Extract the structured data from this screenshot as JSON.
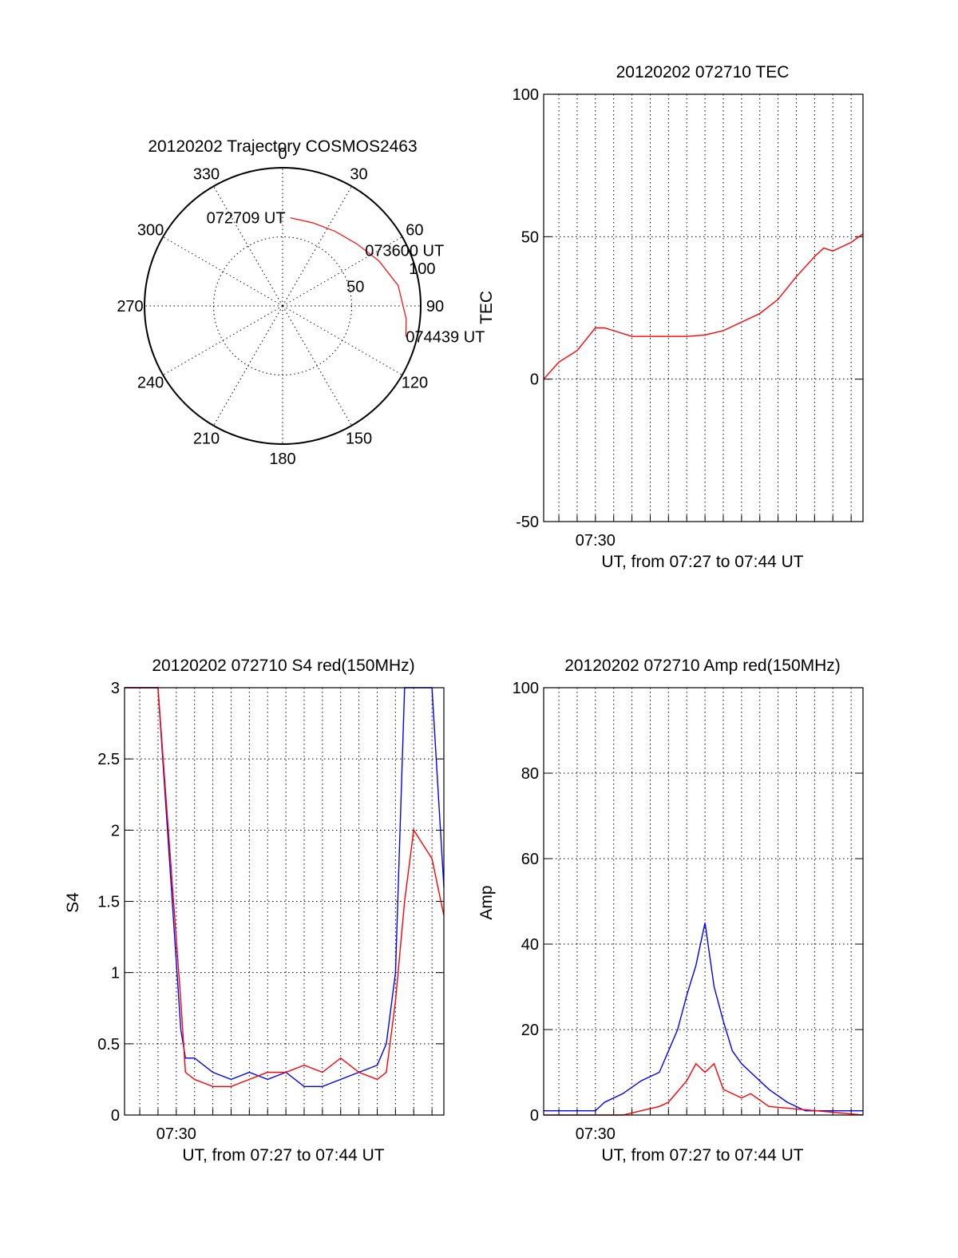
{
  "chart_data": [
    {
      "type": "polar",
      "title": "20120202 Trajectory COSMOS2463",
      "azimuth_labels": [
        "0",
        "30",
        "60",
        "90",
        "120",
        "150",
        "180",
        "210",
        "240",
        "270",
        "300",
        "330"
      ],
      "radius_labels": [
        "50",
        "100"
      ],
      "zenith_range": [
        0,
        100
      ],
      "series": [
        {
          "color": "#ff0000",
          "points": [
            {
              "az": 5,
              "zen": 64
            },
            {
              "az": 20,
              "zen": 64
            },
            {
              "az": 35,
              "zen": 66
            },
            {
              "az": 50,
              "zen": 70
            },
            {
              "az": 65,
              "zen": 77
            },
            {
              "az": 80,
              "zen": 85
            },
            {
              "az": 96,
              "zen": 90
            },
            {
              "az": 104,
              "zen": 92
            }
          ]
        }
      ],
      "annotations": [
        {
          "text": "072709 UT",
          "az": 5,
          "zen": 64
        },
        {
          "text": "073600 UT",
          "az": 56,
          "zen": 72
        },
        {
          "text": "074439 UT",
          "az": 104,
          "zen": 92
        }
      ]
    },
    {
      "type": "line",
      "title": "20120202 072710 TEC",
      "xlabel": "UT, from 07:27 to 07:44 UT",
      "ylabel": "TEC",
      "xlim": [
        "07:27:10",
        "07:44:39"
      ],
      "x_ticks": [
        {
          "label": "07:30",
          "value": "07:30:00"
        }
      ],
      "ylim": [
        -50,
        100
      ],
      "y_ticks": [
        -50,
        0,
        50,
        100
      ],
      "grid": true,
      "series": [
        {
          "color": "#ff0000",
          "x": [
            "07:27:10",
            "07:28:00",
            "07:29:00",
            "07:29:30",
            "07:30:00",
            "07:30:30",
            "07:31:00",
            "07:32:00",
            "07:33:00",
            "07:34:00",
            "07:35:00",
            "07:36:00",
            "07:37:00",
            "07:38:00",
            "07:39:00",
            "07:40:00",
            "07:41:00",
            "07:42:00",
            "07:42:30",
            "07:43:00",
            "07:44:00",
            "07:44:39"
          ],
          "values": [
            0,
            6,
            10,
            14,
            18,
            18,
            17,
            15,
            15,
            15,
            15,
            15.5,
            17,
            20,
            23,
            28,
            36,
            43,
            46,
            45,
            48,
            51
          ]
        }
      ]
    },
    {
      "type": "line",
      "title": "20120202 072710 S4 red(150MHz)",
      "xlabel": "UT, from 07:27 to 07:44 UT",
      "ylabel": "S4",
      "xlim": [
        "07:27:10",
        "07:44:39"
      ],
      "x_ticks": [
        {
          "label": "07:30",
          "value": "07:30:00"
        }
      ],
      "ylim": [
        0,
        3
      ],
      "y_ticks": [
        "0",
        "0.5",
        "1",
        "1.5",
        "2",
        "2.5",
        "3"
      ],
      "grid": true,
      "series": [
        {
          "color": "#0000ff",
          "x": [
            "07:27:10",
            "07:29:00",
            "07:30:15",
            "07:30:30",
            "07:31:00",
            "07:32:00",
            "07:33:00",
            "07:34:00",
            "07:35:00",
            "07:36:00",
            "07:37:00",
            "07:38:00",
            "07:39:00",
            "07:40:00",
            "07:41:00",
            "07:41:30",
            "07:42:00",
            "07:42:30",
            "07:43:00",
            "07:44:00",
            "07:44:39"
          ],
          "values": [
            3.0,
            3.0,
            0.6,
            0.4,
            0.4,
            0.3,
            0.25,
            0.3,
            0.25,
            0.3,
            0.2,
            0.2,
            0.25,
            0.3,
            0.35,
            0.5,
            1.0,
            3.0,
            3.0,
            3.0,
            1.6
          ]
        },
        {
          "color": "#ff0000",
          "x": [
            "07:27:10",
            "07:29:00",
            "07:30:15",
            "07:30:30",
            "07:31:00",
            "07:32:00",
            "07:33:00",
            "07:34:00",
            "07:35:00",
            "07:36:00",
            "07:37:00",
            "07:38:00",
            "07:39:00",
            "07:40:00",
            "07:41:00",
            "07:41:30",
            "07:42:00",
            "07:42:30",
            "07:43:00",
            "07:44:00",
            "07:44:39"
          ],
          "values": [
            3.0,
            3.0,
            0.8,
            0.3,
            0.25,
            0.2,
            0.2,
            0.25,
            0.3,
            0.3,
            0.35,
            0.3,
            0.4,
            0.3,
            0.25,
            0.3,
            0.8,
            1.5,
            2.0,
            1.8,
            1.4
          ]
        }
      ]
    },
    {
      "type": "line",
      "title": "20120202 072710 Amp red(150MHz)",
      "xlabel": "UT, from 07:27 to 07:44 UT",
      "ylabel": "Amp",
      "xlim": [
        "07:27:10",
        "07:44:39"
      ],
      "x_ticks": [
        {
          "label": "07:30",
          "value": "07:30:00"
        }
      ],
      "ylim": [
        0,
        100
      ],
      "y_ticks": [
        0,
        20,
        40,
        60,
        80,
        100
      ],
      "grid": true,
      "series": [
        {
          "color": "#0000ff",
          "x": [
            "07:27:10",
            "07:30:00",
            "07:30:30",
            "07:31:30",
            "07:32:30",
            "07:33:30",
            "07:34:30",
            "07:35:00",
            "07:35:30",
            "07:36:00",
            "07:36:30",
            "07:37:00",
            "07:37:30",
            "07:38:00",
            "07:38:30",
            "07:39:30",
            "07:40:30",
            "07:41:30",
            "07:44:39"
          ],
          "values": [
            1,
            1,
            3,
            5,
            8,
            10,
            20,
            28,
            35,
            45,
            30,
            22,
            15,
            12,
            10,
            6,
            3,
            1,
            1
          ]
        },
        {
          "color": "#ff0000",
          "x": [
            "07:27:10",
            "07:31:30",
            "07:32:30",
            "07:33:30",
            "07:34:00",
            "07:35:00",
            "07:35:30",
            "07:36:00",
            "07:36:30",
            "07:37:00",
            "07:38:00",
            "07:38:30",
            "07:39:30",
            "07:44:39"
          ],
          "values": [
            0,
            0,
            1,
            2,
            3,
            8,
            12,
            10,
            12,
            6,
            4,
            5,
            2,
            0
          ]
        }
      ]
    }
  ]
}
